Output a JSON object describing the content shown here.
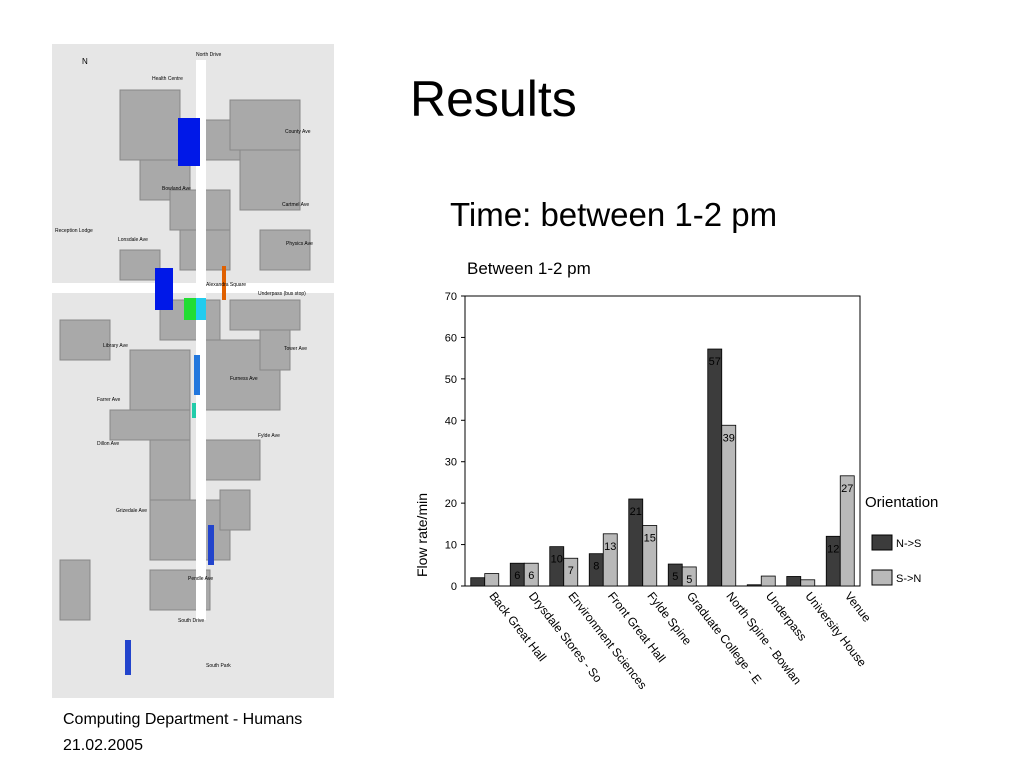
{
  "slide": {
    "title": "Results",
    "subtitle": "Time: between 1-2 pm",
    "footer": [
      "Computing Department - Humans",
      "21.02.2005"
    ]
  },
  "map": {
    "labels": [
      "N",
      "North Drive",
      "Health Centre",
      "Bowland Ave",
      "County Ave",
      "Cartmel Ave",
      "Reception Lodge",
      "Lonsdale Ave",
      "Physics Ave",
      "Alexandra Square",
      "Underpass (bus stop)",
      "Library Ave",
      "Tower Ave",
      "Furness Ave",
      "Farrer Ave",
      "Dillon Ave",
      "Fylde Ave",
      "Grizedale Ave",
      "Pendle Ave",
      "South Drive",
      "South Park"
    ]
  },
  "chart_data": {
    "type": "bar",
    "title": "Between 1-2 pm",
    "y_label": "Flow rate/min",
    "legend_title": "Orientation",
    "categories": [
      "Back Great Hall",
      "Drysdale Stores - So",
      "Environment Sciences",
      "Front Great Hall",
      "Fylde Spine",
      "Graduate College - E",
      "North Spine - Bowlan",
      "Underpass",
      "University House",
      "Venue"
    ],
    "series": [
      {
        "name": "N->S",
        "color": "#3c3c3c",
        "values": [
          2,
          5.5,
          9.5,
          7.8,
          21,
          5.3,
          57.2,
          0.3,
          2.3,
          12
        ],
        "value_labels": [
          null,
          "6",
          "10",
          "8",
          "21",
          "5",
          "57",
          null,
          null,
          "12"
        ]
      },
      {
        "name": "S->N",
        "color": "#b9b9b9",
        "values": [
          3,
          5.5,
          6.7,
          12.6,
          14.6,
          4.6,
          38.8,
          2.4,
          1.5,
          26.6
        ],
        "value_labels": [
          null,
          "6",
          "7",
          "13",
          "15",
          "5",
          "39",
          null,
          null,
          "27"
        ]
      }
    ],
    "ylim": [
      0,
      70
    ],
    "yticks": [
      0,
      10,
      20,
      30,
      40,
      50,
      60,
      70
    ]
  }
}
